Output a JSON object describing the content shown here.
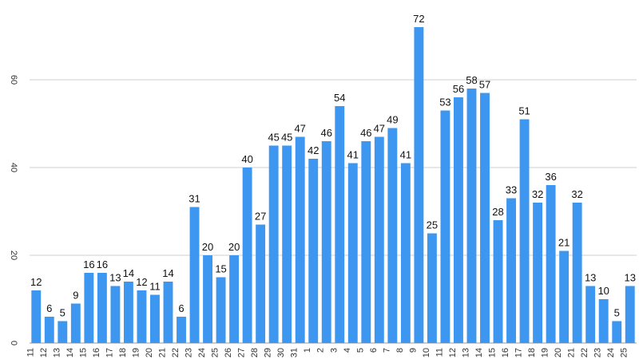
{
  "chart_data": {
    "type": "bar",
    "title": "",
    "xlabel": "",
    "ylabel": "",
    "ylim": [
      0,
      80
    ],
    "y_ticks": [
      0,
      20,
      40,
      60
    ],
    "grid": true,
    "bar_color": "#3d97f0",
    "categories": [
      "11",
      "12",
      "13",
      "14",
      "15",
      "16",
      "17",
      "18",
      "19",
      "20",
      "21",
      "22",
      "23",
      "24",
      "25",
      "26",
      "27",
      "28",
      "29",
      "30",
      "31",
      "1",
      "2",
      "3",
      "4",
      "5",
      "6",
      "7",
      "8",
      "9",
      "10",
      "11",
      "12",
      "13",
      "14",
      "15",
      "16",
      "17",
      "18",
      "19",
      "20",
      "21",
      "22",
      "23",
      "24",
      "25"
    ],
    "values": [
      12,
      6,
      5,
      9,
      16,
      16,
      13,
      14,
      12,
      11,
      14,
      6,
      31,
      20,
      15,
      20,
      40,
      27,
      45,
      45,
      47,
      42,
      46,
      54,
      41,
      46,
      47,
      49,
      41,
      72,
      25,
      53,
      56,
      58,
      57,
      28,
      33,
      51,
      32,
      36,
      21,
      32,
      13,
      10,
      5,
      13
    ]
  }
}
